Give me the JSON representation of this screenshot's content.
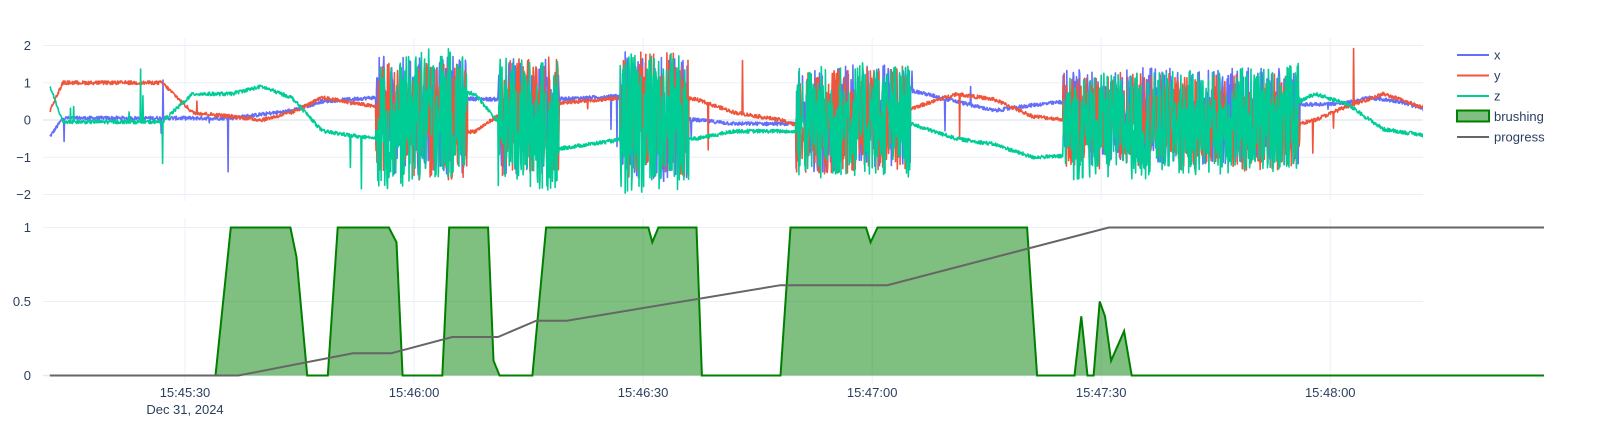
{
  "chart_data": [
    {
      "type": "line",
      "title": "",
      "xlabel": "",
      "ylabel": "",
      "ylim": [
        -2.1,
        2.1
      ],
      "y_ticks": [
        "2",
        "1",
        "0",
        "−1",
        "−2"
      ],
      "x_ticks": [
        "15:45:30",
        "15:46:00",
        "15:46:30",
        "15:47:00",
        "15:47:30",
        "15:48:00"
      ],
      "x_date_label": "Dec 31, 2024",
      "x_range_s": [
        "15:45:14",
        "15:48:09"
      ],
      "grid": true,
      "series": [
        {
          "name": "x",
          "color": "#636efa",
          "keyframes": [
            [
              -17.7,
              -0.45
            ],
            [
              -16,
              0.05
            ],
            [
              -6,
              0.05
            ],
            [
              1,
              0.05
            ],
            [
              6,
              0.05
            ],
            [
              10,
              0.15
            ],
            [
              12,
              0.2
            ],
            [
              14,
              0.25
            ],
            [
              18,
              0.5
            ],
            [
              28,
              0.65
            ],
            [
              32,
              0.6
            ],
            [
              42,
              0.55
            ],
            [
              48,
              0.55
            ],
            [
              58,
              0.65
            ],
            [
              62,
              0.1
            ],
            [
              67,
              0
            ],
            [
              72,
              -0.1
            ],
            [
              83,
              -0.1
            ],
            [
              88,
              0.5
            ],
            [
              95,
              0.8
            ],
            [
              101,
              0.5
            ],
            [
              106,
              0.25
            ],
            [
              111,
              0.4
            ],
            [
              118,
              0.55
            ],
            [
              128,
              0.55
            ],
            [
              138,
              0.5
            ],
            [
              145,
              0.4
            ],
            [
              152,
              0.45
            ],
            [
              155,
              0.6
            ],
            [
              159,
              0.5
            ],
            [
              163,
              0.25
            ],
            [
              167,
              0.3
            ],
            [
              171,
              0.4
            ],
            [
              175,
              0.5
            ],
            [
              179,
              0.55
            ],
            [
              182,
              0.5
            ],
            [
              186,
              0.05
            ],
            [
              196,
              0.05
            ],
            [
              198,
              0.05
            ]
          ]
        },
        {
          "name": "y",
          "color": "#ef553b",
          "keyframes": [
            [
              -17.7,
              0.25
            ],
            [
              -16,
              1
            ],
            [
              -3,
              1
            ],
            [
              1,
              0.2
            ],
            [
              6,
              0.1
            ],
            [
              10,
              0
            ],
            [
              14,
              0.2
            ],
            [
              18,
              0.6
            ],
            [
              28,
              0.25
            ],
            [
              32,
              -0.45
            ],
            [
              38,
              -0.3
            ],
            [
              42,
              0.25
            ],
            [
              48,
              0.45
            ],
            [
              58,
              0.6
            ],
            [
              62,
              0.7
            ],
            [
              67,
              0.55
            ],
            [
              72,
              0.2
            ],
            [
              78,
              0
            ],
            [
              84,
              -0.4
            ],
            [
              88,
              -0.05
            ],
            [
              95,
              0.3
            ],
            [
              101,
              0.7
            ],
            [
              106,
              0.55
            ],
            [
              111,
              0.1
            ],
            [
              118,
              -0.05
            ],
            [
              128,
              -0.2
            ],
            [
              138,
              -0.35
            ],
            [
              145,
              -0.15
            ],
            [
              148,
              0
            ],
            [
              152,
              0.35
            ],
            [
              157,
              0.7
            ],
            [
              162,
              0.35
            ],
            [
              166,
              0.65
            ],
            [
              168,
              0.9
            ],
            [
              172,
              0.9
            ],
            [
              175,
              0.6
            ],
            [
              180,
              0
            ],
            [
              182,
              -0.2
            ],
            [
              186,
              1
            ],
            [
              196,
              1
            ],
            [
              198,
              0.3
            ]
          ]
        },
        {
          "name": "z",
          "color": "#00cc96",
          "keyframes": [
            [
              -17.7,
              0.9
            ],
            [
              -16,
              -0.05
            ],
            [
              -3,
              -0.05
            ],
            [
              1,
              0.7
            ],
            [
              6,
              0.7
            ],
            [
              10,
              0.9
            ],
            [
              14,
              0.6
            ],
            [
              18,
              -0.3
            ],
            [
              28,
              -0.6
            ],
            [
              32,
              0.9
            ],
            [
              38,
              0.7
            ],
            [
              42,
              -0.3
            ],
            [
              48,
              -0.8
            ],
            [
              58,
              -0.5
            ],
            [
              62,
              -0.4
            ],
            [
              67,
              -0.5
            ],
            [
              72,
              -0.3
            ],
            [
              78,
              -0.3
            ],
            [
              84,
              -0.35
            ],
            [
              88,
              0.05
            ],
            [
              95,
              -0.1
            ],
            [
              101,
              -0.5
            ],
            [
              106,
              -0.65
            ],
            [
              111,
              -1
            ],
            [
              118,
              -0.95
            ],
            [
              128,
              -0.65
            ],
            [
              138,
              -0.15
            ],
            [
              145,
              0.4
            ],
            [
              148,
              0.7
            ],
            [
              152,
              0.45
            ],
            [
              157,
              -0.25
            ],
            [
              162,
              -0.4
            ],
            [
              166,
              -0.6
            ],
            [
              168,
              -1
            ],
            [
              172,
              -1
            ],
            [
              175,
              -0.5
            ],
            [
              180,
              -0.5
            ],
            [
              182,
              -0.05
            ],
            [
              186,
              -0.05
            ],
            [
              196,
              -0.05
            ],
            [
              198,
              0.9
            ]
          ]
        }
      ],
      "bursts": [
        [
          25,
          37,
          1.6
        ],
        [
          41,
          49,
          1.6
        ],
        [
          57,
          66,
          1.7
        ],
        [
          80,
          95,
          1.4
        ],
        [
          115,
          146,
          1.3
        ],
        [
          180,
          183.5,
          1.5
        ]
      ]
    },
    {
      "type": "area",
      "title": "",
      "xlabel": "",
      "ylabel": "",
      "ylim": [
        -0.05,
        1.05
      ],
      "y_ticks": [
        "1",
        "0.5",
        "0"
      ],
      "grid": true,
      "series": [
        {
          "name": "brushing",
          "color": "#008000",
          "fill": "rgba(0,128,0,0.5)",
          "points": [
            [
              -17.7,
              0
            ],
            [
              4,
              0
            ],
            [
              6,
              1
            ],
            [
              13.8,
              1
            ],
            [
              14.6,
              0.8
            ],
            [
              16,
              0
            ],
            [
              18.7,
              0
            ],
            [
              20,
              1
            ],
            [
              26.7,
              1
            ],
            [
              27.7,
              0.9
            ],
            [
              28.5,
              0
            ],
            [
              33.7,
              0
            ],
            [
              34.6,
              1
            ],
            [
              39.7,
              1
            ],
            [
              40.4,
              0.1
            ],
            [
              41.2,
              0
            ],
            [
              45.5,
              0
            ],
            [
              47.3,
              1
            ],
            [
              60.7,
              1
            ],
            [
              61.2,
              0.9
            ],
            [
              62,
              1
            ],
            [
              67,
              1
            ],
            [
              67.7,
              0
            ],
            [
              78,
              0
            ],
            [
              79.3,
              1
            ],
            [
              89.2,
              1
            ],
            [
              89.8,
              0.9
            ],
            [
              90.7,
              1
            ],
            [
              110.3,
              1
            ],
            [
              110.8,
              0.6
            ],
            [
              111.6,
              0
            ],
            [
              116.5,
              0
            ],
            [
              117.4,
              0.4
            ],
            [
              118.2,
              0
            ],
            [
              119,
              0
            ],
            [
              119.8,
              0.5
            ],
            [
              120.5,
              0.4
            ],
            [
              121.3,
              0.1
            ],
            [
              123,
              0.3
            ],
            [
              124,
              0
            ],
            [
              178,
              0
            ]
          ]
        },
        {
          "name": "progress",
          "color": "#666666",
          "points": [
            [
              -17.7,
              0
            ],
            [
              7,
              0
            ],
            [
              22,
              0.15
            ],
            [
              27,
              0.15
            ],
            [
              35,
              0.26
            ],
            [
              41,
              0.26
            ],
            [
              46,
              0.37
            ],
            [
              50,
              0.37
            ],
            [
              78,
              0.61
            ],
            [
              92,
              0.61
            ],
            [
              121,
              1
            ],
            [
              178,
              1
            ]
          ]
        }
      ]
    }
  ],
  "legend": [
    {
      "name": "x",
      "color": "#636efa",
      "kind": "line"
    },
    {
      "name": "y",
      "color": "#ef553b",
      "kind": "line"
    },
    {
      "name": "z",
      "color": "#00cc96",
      "kind": "line"
    },
    {
      "name": "brushing",
      "color": "#008000",
      "kind": "area"
    },
    {
      "name": "progress",
      "color": "#666666",
      "kind": "line"
    }
  ]
}
